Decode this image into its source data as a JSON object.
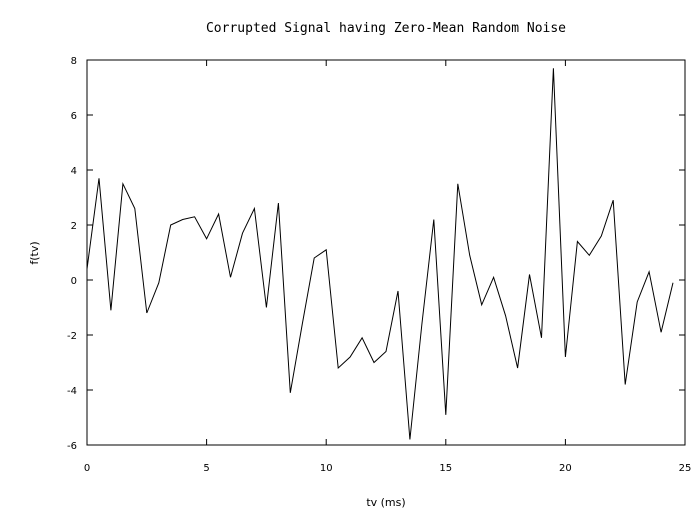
{
  "chart_data": {
    "type": "line",
    "title": "Corrupted Signal having Zero-Mean Random Noise",
    "xlabel": "tv (ms)",
    "ylabel": "f(tv)",
    "xlim": [
      0,
      25
    ],
    "ylim": [
      -6,
      8
    ],
    "x_ticks": [
      "0",
      "5",
      "10",
      "15",
      "20",
      "25"
    ],
    "y_ticks": [
      "-6",
      "-4",
      "-2",
      "0",
      "2",
      "4",
      "6",
      "8"
    ],
    "grid": false,
    "series": [
      {
        "x": [
          0,
          0.5,
          1,
          1.5,
          2,
          2.5,
          3,
          3.5,
          4,
          4.5,
          5,
          5.5,
          6,
          6.5,
          7,
          7.5,
          8,
          8.5,
          9,
          9.5,
          10,
          10.5,
          11,
          11.5,
          12,
          12.5,
          13,
          13.5,
          14,
          14.5,
          15,
          15.5,
          16,
          16.5,
          17,
          17.5,
          18,
          18.5,
          19,
          19.5,
          20,
          20.5,
          21,
          21.5,
          22,
          22.5,
          23,
          23.5,
          24,
          24.5
        ],
        "values": [
          0.4,
          3.7,
          -1.1,
          3.5,
          2.6,
          -1.2,
          -0.1,
          2.0,
          2.2,
          2.3,
          1.5,
          2.4,
          0.1,
          1.7,
          2.6,
          -1.0,
          2.8,
          -4.1,
          -1.6,
          0.8,
          1.1,
          -3.2,
          -2.8,
          -2.1,
          -3.0,
          -2.6,
          -0.4,
          -5.8,
          -1.6,
          2.2,
          -4.9,
          3.5,
          0.9,
          -0.9,
          0.1,
          -1.3,
          -3.2,
          0.2,
          -2.1,
          7.7,
          -2.8,
          1.4,
          0.9,
          1.6,
          2.9,
          -3.8,
          -0.8,
          0.3,
          -1.9,
          -0.1
        ]
      }
    ]
  }
}
